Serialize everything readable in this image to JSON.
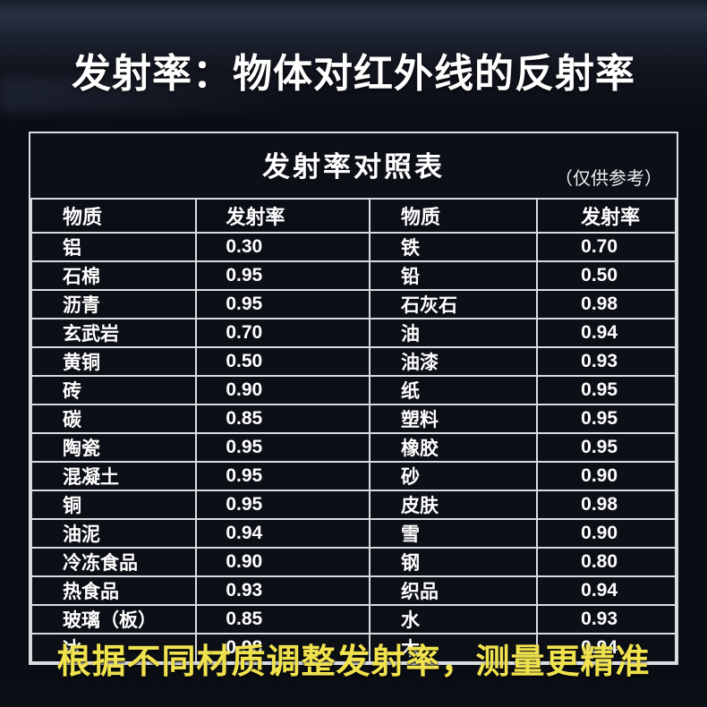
{
  "page": {
    "title": "发射率：物体对红外线的反射率",
    "footer_note": "根据不同材质调整发射率，测量更精准"
  },
  "table": {
    "caption": "发射率对照表",
    "caption_note": "（仅供参考）",
    "headers": [
      "物质",
      "发射率",
      "物质",
      "发射率"
    ],
    "rows": [
      [
        "铝",
        "0.30",
        "铁",
        "0.70"
      ],
      [
        "石棉",
        "0.95",
        "铅",
        "0.50"
      ],
      [
        "沥青",
        "0.95",
        "石灰石",
        "0.98"
      ],
      [
        "玄武岩",
        "0.70",
        "油",
        "0.94"
      ],
      [
        "黄铜",
        "0.50",
        "油漆",
        "0.93"
      ],
      [
        "砖",
        "0.90",
        "纸",
        "0.95"
      ],
      [
        "碳",
        "0.85",
        "塑料",
        "0.95"
      ],
      [
        "陶瓷",
        "0.95",
        "橡胶",
        "0.95"
      ],
      [
        "混凝土",
        "0.95",
        "砂",
        "0.90"
      ],
      [
        "铜",
        "0.95",
        "皮肤",
        "0.98"
      ],
      [
        "油泥",
        "0.94",
        "雪",
        "0.90"
      ],
      [
        "冷冻食品",
        "0.90",
        "钢",
        "0.80"
      ],
      [
        "热食品",
        "0.93",
        "织品",
        "0.94"
      ],
      [
        "玻璃（板）",
        "0.85",
        "水",
        "0.93"
      ],
      [
        "冰",
        "0.98",
        "木",
        "0.94"
      ]
    ]
  },
  "colors": {
    "background": "#0a0d14",
    "table_border": "#d9dce1",
    "text_white": "#ffffff",
    "accent_yellow": "#f0e24f"
  }
}
